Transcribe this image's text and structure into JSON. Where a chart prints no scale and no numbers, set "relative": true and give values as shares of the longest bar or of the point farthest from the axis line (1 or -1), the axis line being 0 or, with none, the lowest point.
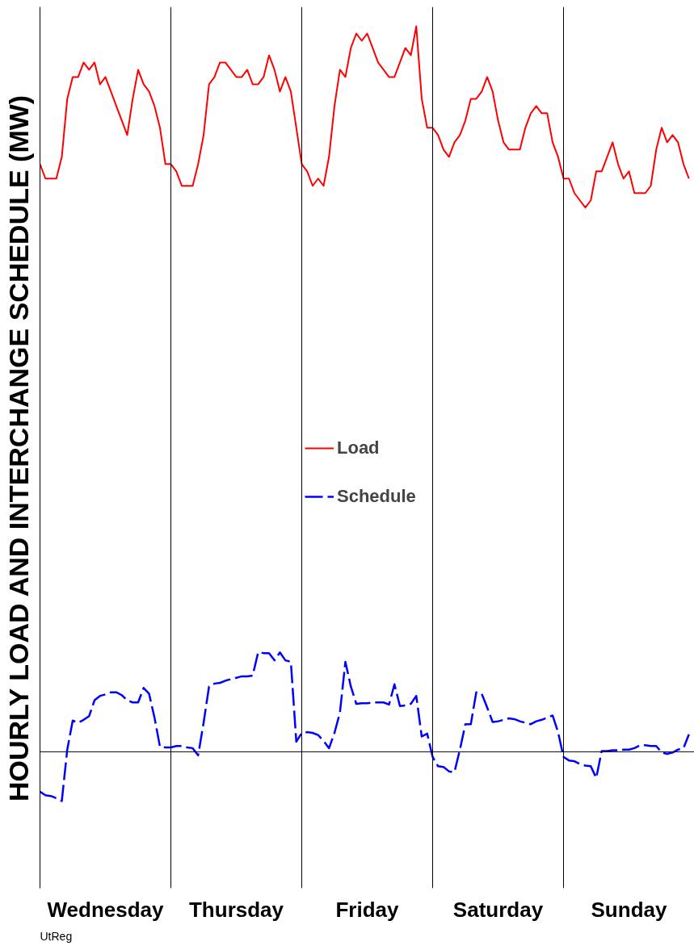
{
  "chart_data": {
    "type": "line",
    "relative": true,
    "ylabel": "HOURLY LOAD AND INTERCHANGE SCHEDULE (MW)",
    "annotations": [
      "UtReg"
    ],
    "categories": [
      null,
      null,
      null,
      null,
      null,
      null,
      null,
      null,
      null,
      null,
      null,
      null,
      "Wednesday",
      null,
      null,
      null,
      null,
      null,
      null,
      null,
      null,
      null,
      null,
      null,
      null,
      null,
      null,
      null,
      null,
      null,
      null,
      null,
      null,
      null,
      null,
      null,
      "Thursday",
      null,
      null,
      null,
      null,
      null,
      null,
      null,
      null,
      null,
      null,
      null,
      null,
      null,
      null,
      null,
      null,
      null,
      null,
      null,
      null,
      null,
      null,
      null,
      "Friday",
      null,
      null,
      null,
      null,
      null,
      null,
      null,
      null,
      null,
      null,
      null,
      null,
      null,
      null,
      null,
      null,
      null,
      null,
      null,
      null,
      null,
      null,
      null,
      "Saturday",
      null,
      null,
      null,
      null,
      null,
      null,
      null,
      null,
      null,
      null,
      null,
      null,
      null,
      null,
      null,
      null,
      null,
      null,
      null,
      null,
      null,
      null,
      null,
      "Sunday",
      null,
      null,
      null,
      null,
      null,
      null,
      null,
      null,
      null,
      null,
      null
    ],
    "series": [
      {
        "name": "Load",
        "color": "#ff0000",
        "line_style": "solid",
        "values": [
          0.81,
          0.79,
          0.79,
          0.79,
          0.82,
          0.9,
          0.93,
          0.93,
          0.95,
          0.94,
          0.95,
          0.92,
          0.93,
          0.91,
          0.89,
          0.87,
          0.85,
          0.9,
          0.94,
          0.92,
          0.91,
          0.89,
          0.86,
          0.81,
          0.81,
          0.8,
          0.78,
          0.78,
          0.78,
          0.81,
          0.85,
          0.92,
          0.93,
          0.95,
          0.95,
          0.94,
          0.93,
          0.93,
          0.94,
          0.92,
          0.92,
          0.93,
          0.96,
          0.94,
          0.91,
          0.93,
          0.91,
          0.86,
          0.81,
          0.8,
          0.78,
          0.79,
          0.78,
          0.82,
          0.89,
          0.94,
          0.93,
          0.97,
          0.99,
          0.98,
          0.99,
          0.97,
          0.95,
          0.94,
          0.93,
          0.93,
          0.95,
          0.97,
          0.96,
          1.0,
          0.9,
          0.86,
          0.86,
          0.85,
          0.83,
          0.82,
          0.84,
          0.85,
          0.87,
          0.9,
          0.9,
          0.91,
          0.93,
          0.91,
          0.87,
          0.84,
          0.83,
          0.83,
          0.83,
          0.86,
          0.88,
          0.89,
          0.88,
          0.88,
          0.84,
          0.82,
          0.79,
          0.79,
          0.77,
          0.76,
          0.75,
          0.76,
          0.8,
          0.8,
          0.82,
          0.84,
          0.81,
          0.79,
          0.8,
          0.77,
          0.77,
          0.77,
          0.78,
          0.83,
          0.86,
          0.84,
          0.85,
          0.84,
          0.81,
          0.79
        ]
      },
      {
        "name": "Schedule",
        "color": "#0000ff",
        "line_style": "dashed",
        "values": [
          -0.055,
          -0.06,
          -0.061,
          -0.064,
          -0.068,
          0.003,
          0.043,
          0.04,
          0.044,
          0.049,
          0.071,
          0.077,
          0.079,
          0.082,
          0.082,
          0.078,
          0.071,
          0.068,
          0.068,
          0.088,
          0.08,
          0.047,
          0.007,
          0.006,
          0.006,
          0.008,
          0.008,
          0.006,
          0.005,
          -0.005,
          0.04,
          0.09,
          0.094,
          0.095,
          0.098,
          0.1,
          0.102,
          0.104,
          0.104,
          0.105,
          0.137,
          0.136,
          0.136,
          0.126,
          0.137,
          0.126,
          0.124,
          0.014,
          0.026,
          0.027,
          0.026,
          0.023,
          0.015,
          0.005,
          0.026,
          0.054,
          0.124,
          0.09,
          0.066,
          0.067,
          0.067,
          0.068,
          0.068,
          0.068,
          0.065,
          0.093,
          0.063,
          0.064,
          0.066,
          0.077,
          0.021,
          0.025,
          -0.007,
          -0.02,
          -0.021,
          -0.027,
          -0.028,
          0.003,
          0.038,
          0.038,
          0.082,
          0.08,
          0.061,
          0.041,
          0.042,
          0.044,
          0.046,
          0.045,
          0.042,
          0.04,
          0.038,
          0.042,
          0.044,
          0.047,
          0.05,
          0.027,
          -0.007,
          -0.012,
          -0.013,
          -0.017,
          -0.019,
          -0.02,
          -0.036,
          0.001,
          0.001,
          0.002,
          0.002,
          0.003,
          0.003,
          0.005,
          0.009,
          0.009,
          0.008,
          0.008,
          -0.001,
          -0.003,
          -0.001,
          0.003,
          0.005,
          0.024
        ]
      }
    ],
    "ref_lines": [
      {
        "axis": "y",
        "value": 0
      }
    ],
    "legend": "center",
    "grid": false,
    "marker": "none"
  }
}
